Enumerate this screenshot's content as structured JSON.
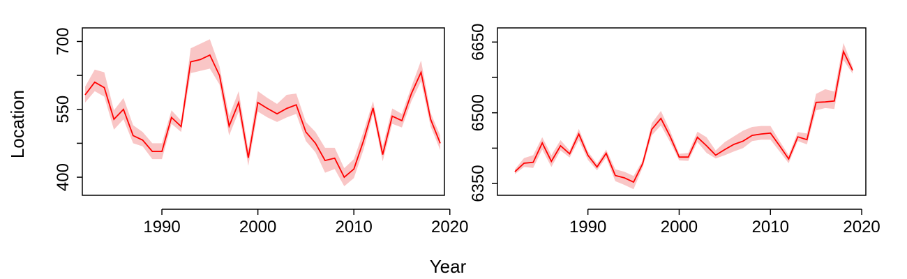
{
  "figure": {
    "xlabel": "Year",
    "ylabel": "Location"
  },
  "colors": {
    "line": "#ff0000",
    "band": "#f9c6c6",
    "axis": "#000000"
  },
  "chart_data": [
    {
      "type": "line",
      "title": "",
      "xlabel": "Year",
      "ylabel": "Location",
      "xlim": [
        1982,
        2019
      ],
      "ylim": [
        360,
        730
      ],
      "xticks": [
        1990,
        2000,
        2010,
        2020
      ],
      "yticks": [
        400,
        550,
        700
      ],
      "yticks_minor": [
        475,
        625
      ],
      "x": [
        1982,
        1983,
        1984,
        1985,
        1986,
        1987,
        1988,
        1989,
        1990,
        1991,
        1992,
        1993,
        1994,
        1995,
        1996,
        1997,
        1998,
        1999,
        2000,
        2001,
        2002,
        2003,
        2004,
        2005,
        2006,
        2007,
        2008,
        2009,
        2010,
        2011,
        2012,
        2013,
        2014,
        2015,
        2016,
        2017,
        2018,
        2019
      ],
      "series": [
        {
          "values": [
            582,
            610,
            598,
            528,
            550,
            492,
            482,
            457,
            457,
            532,
            512,
            655,
            660,
            670,
            625,
            513,
            565,
            443,
            565,
            552,
            540,
            552,
            560,
            500,
            475,
            437,
            442,
            400,
            418,
            480,
            553,
            450,
            535,
            525,
            585,
            632,
            528,
            475
          ],
          "lower": [
            565,
            590,
            578,
            505,
            528,
            475,
            468,
            440,
            440,
            518,
            500,
            630,
            635,
            640,
            605,
            492,
            545,
            425,
            545,
            532,
            522,
            532,
            540,
            480,
            455,
            410,
            418,
            380,
            398,
            460,
            540,
            435,
            518,
            510,
            568,
            612,
            512,
            460
          ],
          "upper": [
            600,
            638,
            632,
            548,
            575,
            515,
            500,
            475,
            475,
            548,
            525,
            685,
            695,
            705,
            645,
            535,
            590,
            460,
            590,
            575,
            562,
            582,
            585,
            522,
            500,
            465,
            465,
            420,
            440,
            500,
            568,
            468,
            552,
            540,
            600,
            658,
            542,
            492
          ]
        }
      ]
    },
    {
      "type": "line",
      "title": "",
      "xlabel": "Year",
      "ylabel": "",
      "xlim": [
        1982,
        2019
      ],
      "ylim": [
        6325,
        6680
      ],
      "xticks": [
        1990,
        2000,
        2010,
        2020
      ],
      "yticks": [
        6350,
        6500,
        6650
      ],
      "yticks_minor": [
        6425,
        6575
      ],
      "x": [
        1982,
        1983,
        1984,
        1985,
        1986,
        1987,
        1988,
        1989,
        1990,
        1991,
        1992,
        1993,
        1994,
        1995,
        1996,
        1997,
        1998,
        1999,
        2000,
        2001,
        2002,
        2003,
        2004,
        2005,
        2006,
        2007,
        2008,
        2009,
        2010,
        2011,
        2012,
        2013,
        2014,
        2015,
        2016,
        2017,
        2018,
        2019
      ],
      "series": [
        {
          "values": [
            6375,
            6393,
            6395,
            6436,
            6397,
            6430,
            6413,
            6455,
            6410,
            6385,
            6414,
            6367,
            6362,
            6353,
            6392,
            6465,
            6488,
            6450,
            6406,
            6406,
            6448,
            6430,
            6410,
            6422,
            6433,
            6440,
            6452,
            6455,
            6457,
            6430,
            6402,
            6449,
            6443,
            6522,
            6523,
            6525,
            6630,
            6590
          ],
          "lower": [
            6370,
            6385,
            6383,
            6422,
            6385,
            6420,
            6405,
            6442,
            6400,
            6378,
            6405,
            6355,
            6347,
            6338,
            6384,
            6452,
            6473,
            6438,
            6399,
            6398,
            6438,
            6415,
            6403,
            6410,
            6418,
            6425,
            6440,
            6443,
            6443,
            6418,
            6393,
            6440,
            6433,
            6505,
            6510,
            6508,
            6612,
            6583
          ],
          "upper": [
            6380,
            6404,
            6410,
            6448,
            6410,
            6442,
            6420,
            6466,
            6418,
            6392,
            6422,
            6380,
            6375,
            6366,
            6399,
            6478,
            6504,
            6462,
            6413,
            6415,
            6460,
            6448,
            6420,
            6438,
            6450,
            6462,
            6470,
            6472,
            6472,
            6440,
            6410,
            6459,
            6456,
            6540,
            6550,
            6545,
            6648,
            6598
          ]
        }
      ]
    }
  ]
}
